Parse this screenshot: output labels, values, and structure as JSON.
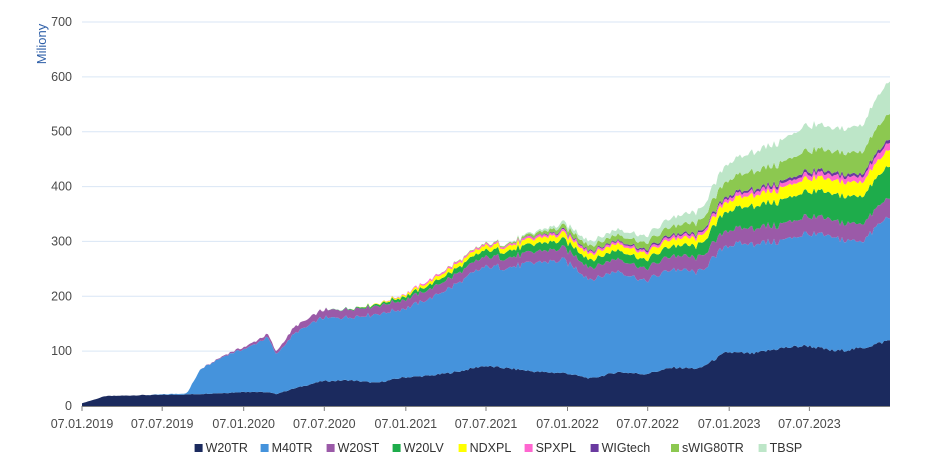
{
  "chart_data": {
    "type": "area",
    "stacked": true,
    "title": "",
    "ylabel": "Miliony",
    "xlabel": "",
    "ylim": [
      0,
      700
    ],
    "yticks": [
      "0",
      "100",
      "200",
      "300",
      "400",
      "500",
      "600",
      "700"
    ],
    "xticks": [
      "07.01.2019",
      "07.07.2019",
      "07.01.2020",
      "07.07.2020",
      "07.01.2021",
      "07.07.2021",
      "07.01.2022",
      "07.07.2022",
      "07.01.2023",
      "07.07.2023"
    ],
    "x_range": [
      "07.01.2019",
      "05.01.2024"
    ],
    "grid": true,
    "legend_position": "bottom",
    "x": [
      "07.01.2019",
      "01.03.2019",
      "01.06.2019",
      "01.09.2019",
      "01.10.2019",
      "01.12.2019",
      "15.01.2020",
      "01.03.2020",
      "20.03.2020",
      "01.05.2020",
      "01.07.2020",
      "01.09.2020",
      "01.11.2020",
      "01.01.2021",
      "01.03.2021",
      "01.05.2021",
      "01.07.2021",
      "01.09.2021",
      "01.11.2021",
      "01.01.2022",
      "01.03.2022",
      "01.05.2022",
      "01.07.2022",
      "01.09.2022",
      "01.11.2022",
      "01.01.2023",
      "01.03.2023",
      "01.05.2023",
      "01.07.2023",
      "01.09.2023",
      "01.11.2023",
      "05.01.2024"
    ],
    "series": [
      {
        "name": "W20TR",
        "color": "#1b2a5e",
        "values": [
          5,
          18,
          20,
          21,
          22,
          24,
          26,
          25,
          22,
          32,
          45,
          47,
          42,
          52,
          55,
          62,
          73,
          68,
          62,
          60,
          50,
          62,
          58,
          70,
          68,
          98,
          95,
          105,
          110,
          100,
          105,
          120
        ]
      },
      {
        "name": "M40TR",
        "color": "#4593dc",
        "values": [
          0,
          0,
          0,
          2,
          45,
          70,
          80,
          100,
          72,
          100,
          115,
          115,
          125,
          125,
          140,
          160,
          180,
          185,
          200,
          205,
          180,
          185,
          170,
          180,
          175,
          195,
          200,
          195,
          205,
          205,
          195,
          228
        ]
      },
      {
        "name": "W20ST",
        "color": "#9b5aa8",
        "values": [
          0,
          0,
          0,
          0,
          0,
          2,
          4,
          6,
          5,
          12,
          14,
          15,
          15,
          16,
          17,
          18,
          18,
          18,
          20,
          22,
          22,
          23,
          22,
          25,
          26,
          28,
          29,
          30,
          31,
          31,
          32,
          35
        ]
      },
      {
        "name": "W20LV",
        "color": "#1eac4b",
        "values": [
          0,
          0,
          0,
          0,
          0,
          0,
          0,
          0,
          0,
          0,
          0,
          1,
          3,
          6,
          8,
          10,
          12,
          13,
          14,
          15,
          14,
          16,
          16,
          18,
          22,
          35,
          40,
          43,
          46,
          48,
          50,
          58
        ]
      },
      {
        "name": "NDXPL",
        "color": "#ffff00",
        "values": [
          0,
          0,
          0,
          0,
          0,
          0,
          0,
          0,
          0,
          0,
          0,
          0,
          1,
          3,
          6,
          8,
          8,
          9,
          10,
          11,
          11,
          12,
          12,
          13,
          14,
          18,
          20,
          22,
          24,
          25,
          26,
          30
        ]
      },
      {
        "name": "SPXPL",
        "color": "#ff66d0",
        "values": [
          0,
          0,
          0,
          0,
          0,
          0,
          0,
          0,
          0,
          0,
          0,
          0,
          0,
          1,
          3,
          3,
          3,
          3,
          4,
          4,
          4,
          4,
          4,
          5,
          5,
          6,
          7,
          7,
          8,
          9,
          10,
          13
        ]
      },
      {
        "name": "WIGtech",
        "color": "#6a3aa0",
        "values": [
          0,
          0,
          0,
          0,
          0,
          0,
          0,
          0,
          0,
          0,
          0,
          0,
          0,
          0,
          0,
          0,
          0,
          0,
          1,
          2,
          2,
          2,
          3,
          3,
          3,
          4,
          4,
          5,
          5,
          5,
          5,
          6
        ]
      },
      {
        "name": "sWIG80TR",
        "color": "#8cc850",
        "values": [
          0,
          0,
          0,
          0,
          0,
          0,
          0,
          0,
          0,
          0,
          0,
          0,
          0,
          0,
          0,
          1,
          1,
          2,
          5,
          8,
          9,
          10,
          12,
          15,
          20,
          28,
          32,
          34,
          38,
          38,
          40,
          48
        ]
      },
      {
        "name": "TBSP",
        "color": "#bde6c8",
        "values": [
          0,
          0,
          0,
          0,
          0,
          0,
          0,
          0,
          0,
          0,
          0,
          0,
          0,
          0,
          0,
          0,
          0,
          1,
          3,
          6,
          8,
          10,
          12,
          16,
          20,
          30,
          35,
          40,
          46,
          42,
          48,
          60
        ]
      }
    ]
  }
}
